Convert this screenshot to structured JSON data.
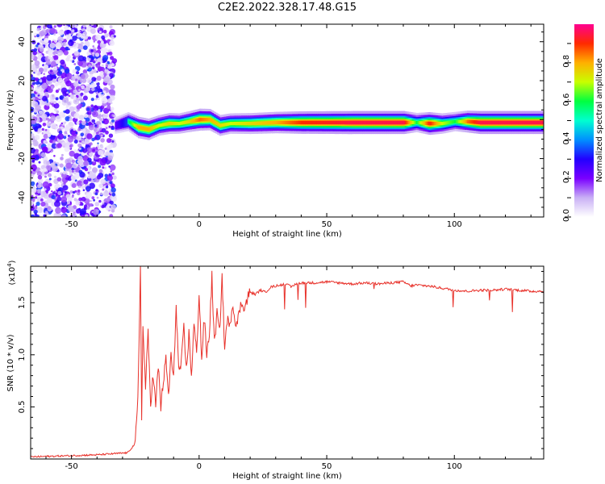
{
  "title": "C2E2.2022.328.17.48.G15",
  "chart_data": [
    {
      "type": "heatmap",
      "title": "",
      "xlabel": "Height of straight line (km)",
      "ylabel": "Frequency (Hz)",
      "xlim": [
        -66,
        135
      ],
      "ylim": [
        -50,
        49
      ],
      "xticks": [
        -50,
        0,
        50,
        100
      ],
      "yticks": [
        -40,
        -20,
        0,
        20,
        40
      ],
      "colorbar": {
        "label": "Normalized spectral amplitude",
        "range": [
          0,
          1
        ],
        "ticks": [
          "0.0",
          "0.2",
          "0.4",
          "0.6",
          "0.8"
        ],
        "colormap": [
          "#ffffff",
          "#c9b0f5",
          "#7a00ff",
          "#2200ff",
          "#0090ff",
          "#00ffd0",
          "#00ff40",
          "#c8ff00",
          "#ffb000",
          "#ff2a00",
          "#ff0090"
        ]
      },
      "noise_region_x": [
        -66,
        -33
      ],
      "ridge": {
        "x": [
          -33,
          -28,
          -24,
          -20,
          -16,
          -12,
          -8,
          -4,
          0,
          4,
          8,
          12,
          20,
          30,
          40,
          50,
          60,
          70,
          80,
          85,
          90,
          95,
          100,
          105,
          110,
          120,
          135
        ],
        "freq": [
          -3,
          -1,
          -4,
          -5,
          -3,
          -2,
          -2,
          -1,
          0,
          0,
          -3,
          -2,
          -2,
          -1.5,
          -1.5,
          -1.5,
          -1.5,
          -1.5,
          -1.5,
          -1.5,
          -2,
          -2,
          -1,
          -1,
          -1.5,
          -1.5,
          -1.5
        ],
        "amplitude": [
          0.35,
          0.55,
          0.8,
          0.8,
          0.7,
          0.75,
          0.7,
          0.75,
          0.85,
          0.8,
          0.75,
          0.7,
          0.75,
          0.8,
          0.9,
          0.92,
          0.95,
          0.95,
          0.95,
          0.6,
          0.92,
          0.7,
          0.6,
          0.85,
          0.95,
          0.95,
          0.95
        ]
      }
    },
    {
      "type": "line",
      "title": "",
      "xlabel": "Height of straight line (km)",
      "ylabel": "SNR (10 * v/v)",
      "y_multiplier_base": "(x10",
      "y_multiplier_exp": "4",
      "y_multiplier_close": ")",
      "xlim": [
        -66,
        135
      ],
      "ylim": [
        0,
        1.85
      ],
      "xticks": [
        -50,
        0,
        50,
        100
      ],
      "yticks": [
        0.5,
        1.0,
        1.5
      ],
      "series": [
        {
          "color": "#e8312a",
          "x": [
            -66,
            -40,
            -28,
            -25,
            -24,
            -23,
            -22.5,
            -22,
            -21,
            -20,
            -19,
            -18,
            -17,
            -16,
            -15,
            -14,
            -13,
            -12,
            -11,
            -10,
            -9,
            -8,
            -7,
            -6,
            -5,
            -4,
            -3,
            -2,
            -1,
            0,
            1,
            2,
            3,
            4,
            5,
            6,
            7,
            8,
            9,
            10,
            11,
            12,
            13,
            14,
            15,
            16,
            17,
            18,
            19,
            20,
            22,
            24,
            26,
            28,
            30,
            32,
            34,
            36,
            38,
            40,
            45,
            50,
            55,
            60,
            65,
            70,
            75,
            80,
            83,
            85,
            90,
            95,
            100,
            105,
            110,
            115,
            120,
            125,
            130,
            135
          ],
          "y": [
            0.02,
            0.04,
            0.06,
            0.15,
            0.55,
            1.85,
            0.4,
            1.25,
            0.7,
            1.2,
            0.55,
            0.8,
            0.5,
            0.9,
            0.5,
            0.75,
            0.95,
            0.6,
            1.0,
            0.75,
            1.5,
            0.85,
            0.9,
            1.25,
            0.85,
            1.2,
            0.8,
            1.3,
            1.0,
            1.6,
            0.95,
            1.35,
            1.0,
            1.2,
            1.75,
            1.1,
            1.4,
            1.2,
            1.75,
            1.05,
            1.35,
            1.25,
            1.5,
            1.35,
            1.3,
            1.45,
            1.5,
            1.45,
            1.55,
            1.6,
            1.58,
            1.62,
            1.6,
            1.65,
            1.66,
            1.67,
            1.68,
            1.65,
            1.68,
            1.69,
            1.69,
            1.7,
            1.69,
            1.68,
            1.69,
            1.68,
            1.69,
            1.7,
            1.66,
            1.67,
            1.66,
            1.64,
            1.62,
            1.61,
            1.62,
            1.62,
            1.63,
            1.62,
            1.61,
            1.61
          ]
        }
      ]
    }
  ]
}
